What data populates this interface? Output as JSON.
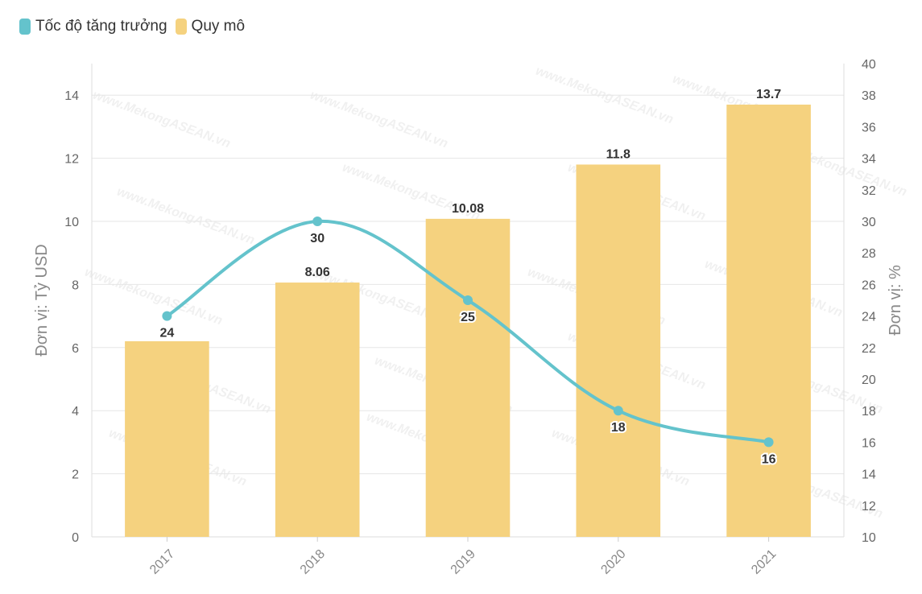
{
  "legend": {
    "items": [
      {
        "label": "Tốc độ tăng trưởng",
        "color": "#64c3cc"
      },
      {
        "label": "Quy mô",
        "color": "#f5d27f"
      }
    ]
  },
  "watermark": "www.MekongASEAN.vn",
  "chart_data": {
    "type": "bar",
    "categories": [
      "2017",
      "2018",
      "2019",
      "2020",
      "2021"
    ],
    "series": [
      {
        "name": "Quy mô",
        "type": "bar",
        "axis": "left",
        "values": [
          6.2,
          8.06,
          10.08,
          11.8,
          13.7
        ],
        "labels": [
          "",
          "8.06",
          "10.08",
          "11.8",
          "13.7"
        ],
        "color": "#f5d27f"
      },
      {
        "name": "Tốc độ tăng trưởng",
        "type": "line",
        "axis": "right",
        "values": [
          24,
          30,
          25,
          18,
          16
        ],
        "labels": [
          "24",
          "30",
          "25",
          "18",
          "16"
        ],
        "color": "#64c3cc"
      }
    ],
    "ylabel_left": "Đơn vị: Tỷ USD",
    "ylabel_right": "Đơn vị: %",
    "ylim_left": [
      0,
      15
    ],
    "yticks_left": [
      "0",
      "2",
      "4",
      "6",
      "8",
      "10",
      "12",
      "14"
    ],
    "ylim_right": [
      10,
      40
    ],
    "yticks_right": [
      "10",
      "12",
      "14",
      "16",
      "18",
      "20",
      "22",
      "24",
      "26",
      "28",
      "30",
      "32",
      "34",
      "36",
      "38",
      "40"
    ],
    "grid": true,
    "legend_position": "top-left"
  }
}
